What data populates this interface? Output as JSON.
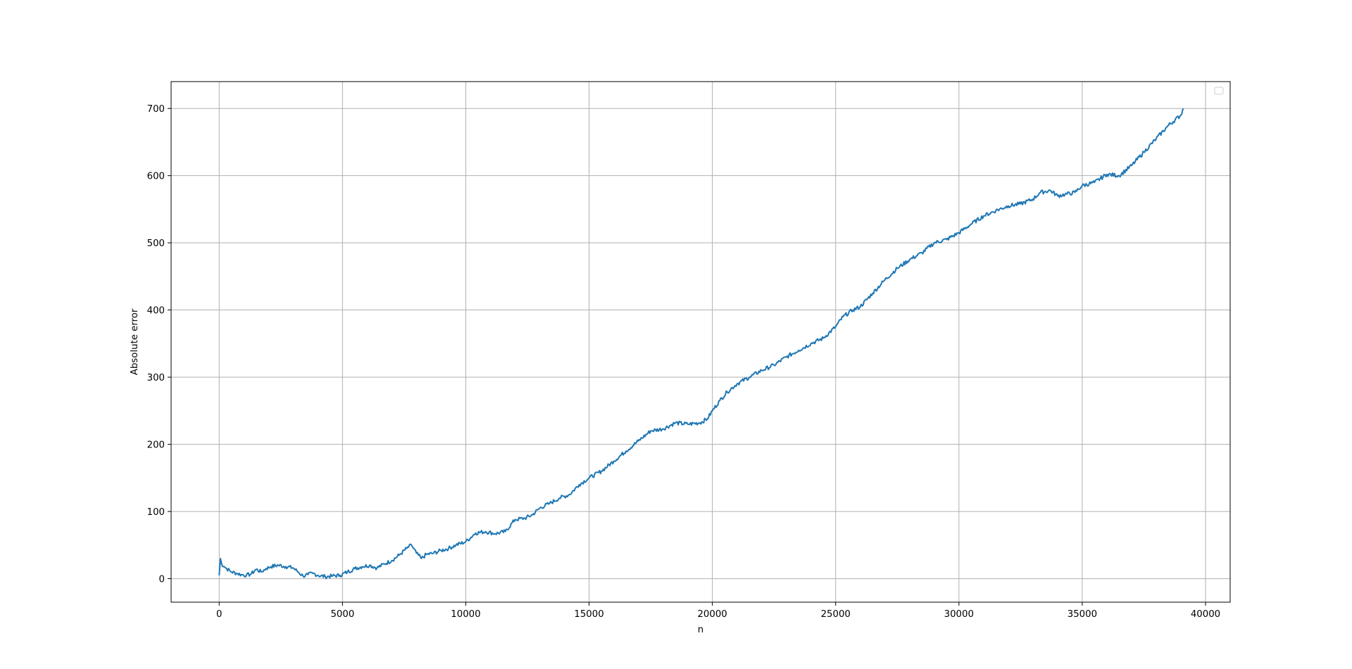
{
  "chart_data": {
    "type": "line",
    "title": "",
    "xlabel": "n",
    "ylabel": "Absolute error",
    "xlim": [
      -1950,
      41000
    ],
    "ylim": [
      -35,
      740
    ],
    "xticks": [
      0,
      5000,
      10000,
      15000,
      20000,
      25000,
      30000,
      35000,
      40000
    ],
    "yticks": [
      0,
      100,
      200,
      300,
      400,
      500,
      600,
      700
    ],
    "grid": true,
    "legend": {
      "placement": "top-right",
      "entries": []
    },
    "series": [
      {
        "color": "#1f77b4",
        "x": [
          0,
          50,
          100,
          200,
          300,
          500,
          700,
          900,
          1100,
          1300,
          1500,
          1700,
          1900,
          2100,
          2400,
          2700,
          3000,
          3200,
          3400,
          3600,
          3800,
          4000,
          4300,
          4600,
          4900,
          5200,
          5500,
          5800,
          6100,
          6400,
          6700,
          7000,
          7300,
          7600,
          7800,
          8000,
          8200,
          8400,
          8700,
          9000,
          9300,
          9600,
          10000,
          10400,
          10800,
          11200,
          11600,
          12000,
          12400,
          12700,
          13000,
          13400,
          13800,
          14200,
          14600,
          15000,
          15500,
          16000,
          16500,
          17000,
          17500,
          18000,
          18500,
          19000,
          19500,
          19800,
          20000,
          20300,
          20600,
          21000,
          21500,
          22000,
          22500,
          23000,
          23500,
          24000,
          24500,
          25000,
          25300,
          25700,
          26000,
          26500,
          27000,
          27500,
          28000,
          28500,
          29000,
          29500,
          30000,
          30500,
          31000,
          31500,
          32000,
          32500,
          33000,
          33300,
          33700,
          34000,
          34300,
          34700,
          35000,
          35500,
          36000,
          36500,
          37000,
          37500,
          38000,
          38500,
          39000,
          39100
        ],
        "y": [
          5,
          30,
          22,
          18,
          15,
          10,
          8,
          6,
          5,
          7,
          14,
          10,
          15,
          18,
          20,
          18,
          16,
          10,
          4,
          6,
          8,
          5,
          3,
          4,
          5,
          10,
          15,
          18,
          20,
          16,
          22,
          27,
          35,
          45,
          50,
          38,
          30,
          36,
          38,
          42,
          45,
          50,
          55,
          68,
          70,
          67,
          70,
          88,
          90,
          95,
          105,
          112,
          120,
          125,
          140,
          150,
          160,
          175,
          190,
          205,
          220,
          223,
          232,
          230,
          232,
          238,
          250,
          265,
          278,
          290,
          300,
          310,
          318,
          330,
          340,
          350,
          358,
          375,
          390,
          400,
          405,
          425,
          445,
          462,
          475,
          485,
          500,
          505,
          515,
          528,
          540,
          548,
          555,
          558,
          565,
          575,
          578,
          570,
          572,
          575,
          585,
          590,
          602,
          600,
          615,
          635,
          655,
          675,
          690,
          700
        ]
      }
    ]
  }
}
